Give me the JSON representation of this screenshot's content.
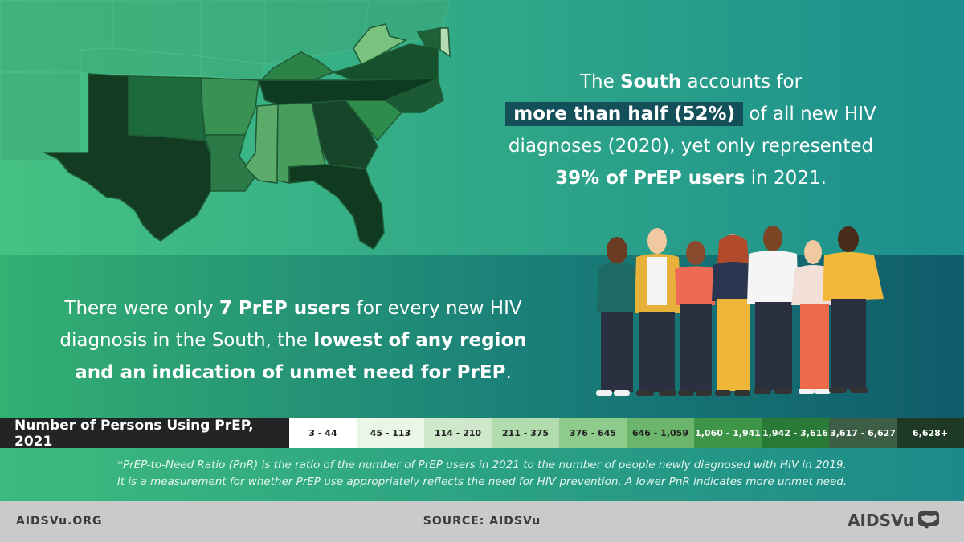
{
  "headline": {
    "line1_pre": "The ",
    "line1_bold": "South",
    "line1_post": " accounts for",
    "line2_highlight": "more than half (52%)",
    "line2_post": " of all new HIV",
    "line3": "diagnoses (2020), yet only represented",
    "line4_bold": "39% of PrEP users",
    "line4_post": " in 2021."
  },
  "secondary": {
    "part1": "There were only ",
    "part2_bold": "7 PrEP users",
    "part3": " for every new HIV",
    "part4": "diagnosis in the South, the ",
    "part5_bold": "lowest of any region",
    "part6_bold": "and an indication of unmet need for PrEP",
    "part7": "."
  },
  "legend": {
    "title": "Number of Persons Using PrEP, 2021",
    "ranges": [
      {
        "label": "3 - 44",
        "color": "#ffffff",
        "text_color": "#222222"
      },
      {
        "label": "45 - 113",
        "color": "#eaf6e6",
        "text_color": "#222222"
      },
      {
        "label": "114 - 210",
        "color": "#cfe8cb",
        "text_color": "#222222"
      },
      {
        "label": "211 - 375",
        "color": "#b1dcae",
        "text_color": "#222222"
      },
      {
        "label": "376 - 645",
        "color": "#8fcb8d",
        "text_color": "#222222"
      },
      {
        "label": "646 - 1,059",
        "color": "#6cb56c",
        "text_color": "#222222"
      },
      {
        "label": "1,060 - 1,941",
        "color": "#3e9447",
        "text_color": "#ffffff"
      },
      {
        "label": "1,942 - 3,616",
        "color": "#2a7a37",
        "text_color": "#ffffff"
      },
      {
        "label": "3,617 - 6,627",
        "color": "#3b5e45",
        "text_color": "#ffffff"
      },
      {
        "label": "6,628+",
        "color": "#1e3a26",
        "text_color": "#ffffff"
      }
    ]
  },
  "footnote": {
    "line1": "*PrEP-to-Need Ratio (PnR) is the ratio of the number of PrEP users in 2021 to the number of people newly diagnosed with HIV in 2019.",
    "line2": "It is a measurement for whether PrEP use appropriately reflects the need for HIV prevention. A lower PnR indicates more unmet need."
  },
  "footer": {
    "site": "AIDSVu.ORG",
    "source": "SOURCE: AIDSVu",
    "logo": "AIDSVu"
  },
  "icons": [
    "us-south-map-icon",
    "people-group-icon",
    "aidsvu-map-logo-icon"
  ],
  "colors": {
    "highlight_box": "#14505a",
    "legend_title_bg": "#222426",
    "footer_bg": "#c9caca"
  }
}
